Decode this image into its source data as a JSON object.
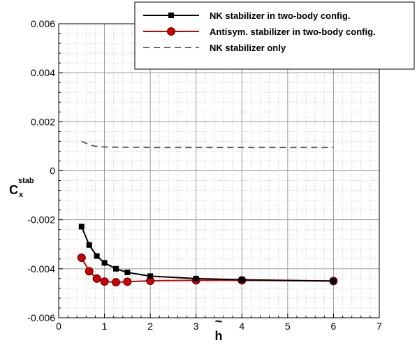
{
  "chart_data": {
    "type": "line",
    "xlabel": "h",
    "xlabel_accent": "~",
    "ylabel": "C",
    "ylabel_sup": "stab",
    "ylabel_sub": "x",
    "xlim": [
      0,
      7
    ],
    "ylim": [
      -0.006,
      0.006
    ],
    "x_ticks": [
      0,
      1,
      2,
      3,
      4,
      5,
      6,
      7
    ],
    "x_tick_labels": [
      "0",
      "1",
      "2",
      "3",
      "4",
      "5",
      "6",
      "7"
    ],
    "y_ticks": [
      -0.006,
      -0.004,
      -0.002,
      0,
      0.002,
      0.004,
      0.006
    ],
    "y_tick_labels": [
      "-0.006",
      "-0.004",
      "-0.002",
      "0",
      "0.002",
      "0.004",
      "0.006"
    ],
    "grid": true,
    "minor_grid": true,
    "legend_position": "top-right",
    "series": [
      {
        "name": "NK stabilizer in two-body config.",
        "color": "#000000",
        "marker": "square",
        "line": "solid",
        "x": [
          0.5,
          0.667,
          0.833,
          1.0,
          1.25,
          1.5,
          2.0,
          3.0,
          4.0,
          6.0
        ],
        "y": [
          -0.00228,
          -0.00303,
          -0.00348,
          -0.00376,
          -0.004,
          -0.00415,
          -0.0043,
          -0.0044,
          -0.00445,
          -0.0045
        ]
      },
      {
        "name": "Antisym. stabilizer in two-body config.",
        "color": "#cc0000",
        "marker": "circle",
        "line": "solid",
        "x": [
          0.5,
          0.667,
          0.833,
          1.0,
          1.25,
          1.5,
          2.0,
          3.0,
          4.0,
          6.0
        ],
        "y": [
          -0.00355,
          -0.0041,
          -0.0044,
          -0.00452,
          -0.00455,
          -0.00453,
          -0.00449,
          -0.00447,
          -0.00447,
          -0.0045
        ]
      },
      {
        "name": "NK stabilizer only",
        "color": "#555555",
        "marker": "none",
        "line": "dashed",
        "x": [
          0.5,
          0.6,
          0.7,
          0.8,
          1.0,
          1.25,
          1.5,
          2.0,
          3.0,
          4.0,
          5.0,
          6.0
        ],
        "y": [
          0.0012,
          0.00112,
          0.00104,
          0.001,
          0.00097,
          0.00096,
          0.00096,
          0.00095,
          0.00095,
          0.00095,
          0.00095,
          0.00095
        ]
      }
    ]
  }
}
